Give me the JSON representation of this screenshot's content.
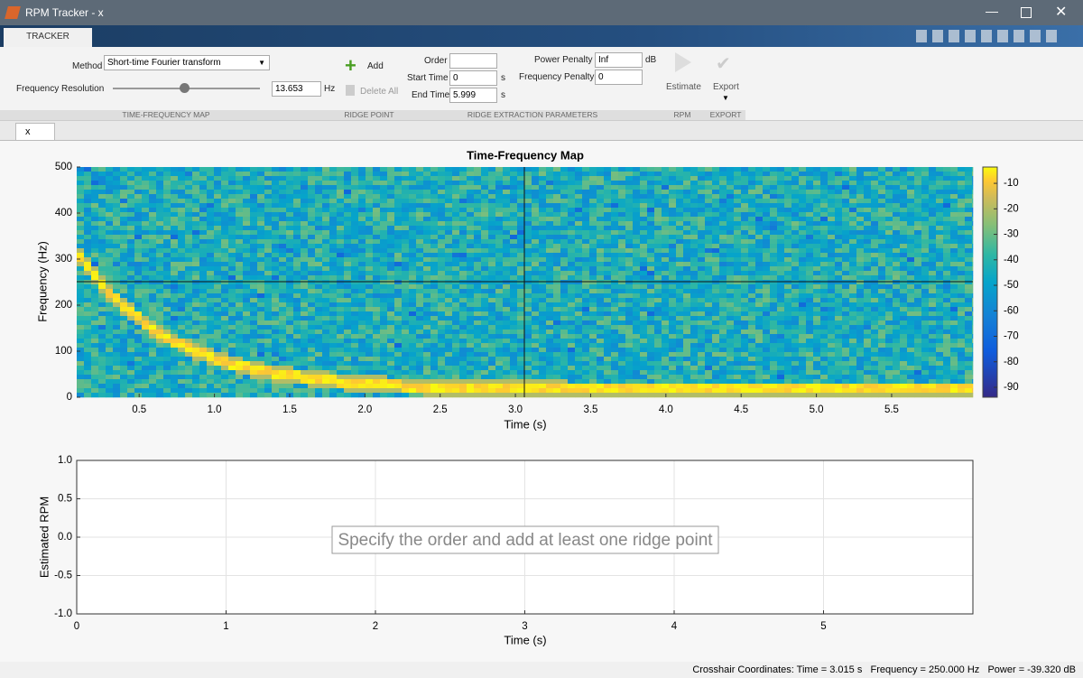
{
  "window": {
    "title": "RPM Tracker - x"
  },
  "tabs": {
    "active": "TRACKER"
  },
  "ribbon": {
    "method": {
      "label": "Method",
      "value": "Short-time Fourier transform"
    },
    "frequency_resolution": {
      "label": "Frequency Resolution",
      "value": "13.653",
      "unit": "Hz"
    },
    "add": "Add",
    "delete_all": "Delete All",
    "order": {
      "label": "Order"
    },
    "start_time": {
      "label": "Start Time",
      "value": "0",
      "unit": "s"
    },
    "end_time": {
      "label": "End Time",
      "value": "5.999",
      "unit": "s"
    },
    "power_penalty": {
      "label": "Power Penalty",
      "value": "Inf",
      "unit": "dB"
    },
    "frequency_penalty": {
      "label": "Frequency Penalty",
      "value": "0"
    },
    "estimate": "Estimate",
    "export": "Export",
    "sections": [
      "TIME-FREQUENCY MAP",
      "RIDGE POINT",
      "RIDGE EXTRACTION PARAMETERS",
      "RPM",
      "EXPORT"
    ]
  },
  "document_tab": "x",
  "chart_data": [
    {
      "type": "heatmap",
      "title": "Time-Frequency Map",
      "xlabel": "Time (s)",
      "ylabel": "Frequency (Hz)",
      "xlim": [
        0.085,
        6.04
      ],
      "xticks": [
        0.5,
        {
          "value": 1,
          "label": "1.0"
        },
        1.5,
        {
          "value": 2,
          "label": "2.0"
        },
        2.5,
        {
          "value": 3,
          "label": "3.0"
        },
        3.5,
        {
          "value": 4,
          "label": "4.0"
        },
        4.5,
        {
          "value": 5,
          "label": "5.0"
        },
        5.5
      ],
      "ylim": [
        0,
        500
      ],
      "yticks": [
        0,
        100,
        200,
        300,
        400,
        500
      ],
      "colorbar": {
        "clim": [
          -93.9,
          -3.6
        ],
        "ticks": [
          -10,
          -20,
          -30,
          -40,
          -50,
          -60,
          -70,
          -80,
          -90
        ]
      }
    },
    {
      "type": "line",
      "xlabel": "Time (s)",
      "ylabel": "Estimated RPM",
      "xlim": [
        0,
        6
      ],
      "xticks": [
        0,
        1,
        2,
        3,
        4,
        5
      ],
      "ylim": [
        -1,
        1
      ],
      "yticks": [
        {
          "value": -1,
          "label": "-1.0"
        },
        -0.5,
        {
          "value": 0,
          "label": "0.0"
        },
        0.5,
        {
          "value": 1,
          "label": "1.0"
        }
      ],
      "grid": true,
      "annotation": "Specify the order and add at least one ridge point"
    }
  ],
  "status": {
    "label": "Crosshair Coordinates:",
    "time": "Time = 3.015 s",
    "frequency": "Frequency = 250.000 Hz",
    "power": "Power = -39.320 dB"
  }
}
